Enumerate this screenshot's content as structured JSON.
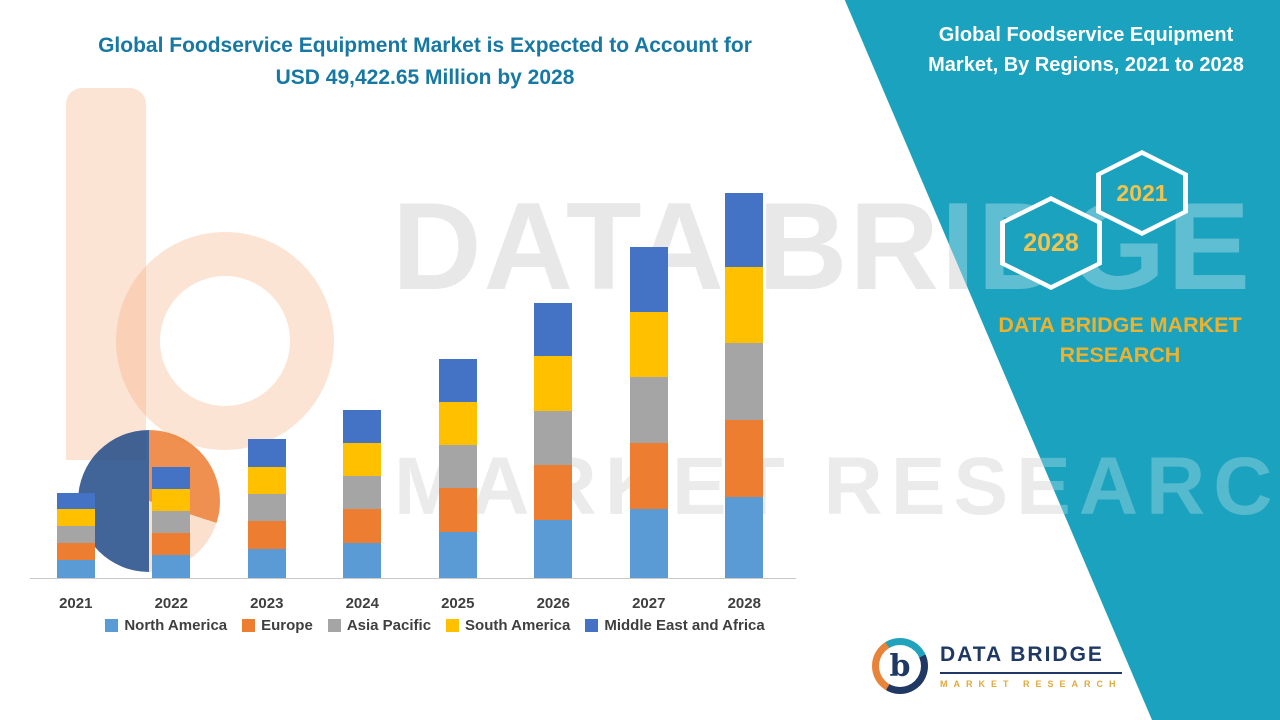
{
  "title": {
    "line1": "Global Foodservice Equipment Market is Expected to Account for",
    "line2": "USD 49,422.65 Million by 2028",
    "color": "#1779A3"
  },
  "banner": {
    "color": "#1BA2BE",
    "heading_line1": "Global Foodservice Equipment",
    "heading_line2": "Market, By Regions, 2021 to 2028",
    "hex_year_left": "2028",
    "hex_year_right": "2021",
    "brand_line1": "DATA BRIDGE MARKET",
    "brand_line2": "RESEARCH",
    "brand_color": "#ECB22E"
  },
  "watermark": {
    "line1": "DATA BRIDGE",
    "line2": "MARKET RESEARCH"
  },
  "footer_logo": {
    "monogram": "b",
    "name": "DATA BRIDGE",
    "sub": "MARKET RESEARCH"
  },
  "chart_data": {
    "type": "bar",
    "stacked": true,
    "title": "Global Foodservice Equipment Market is Expected to Account for USD 49,422.65 Million by 2028",
    "unit": "USD Million",
    "categories": [
      "2021",
      "2022",
      "2023",
      "2024",
      "2025",
      "2026",
      "2027",
      "2028"
    ],
    "series": [
      {
        "name": "North America",
        "color": "#5B9BD5",
        "values": [
          2300,
          2950,
          3700,
          4500,
          5900,
          7400,
          8900,
          10400
        ]
      },
      {
        "name": "Europe",
        "color": "#ED7D31",
        "values": [
          2200,
          2850,
          3550,
          4300,
          5600,
          7050,
          8450,
          9900
        ]
      },
      {
        "name": "Asia Pacific",
        "color": "#A5A5A5",
        "values": [
          2150,
          2800,
          3500,
          4250,
          5550,
          7000,
          8400,
          9850
        ]
      },
      {
        "name": "South America",
        "color": "#FFC000",
        "values": [
          2150,
          2800,
          3500,
          4250,
          5550,
          7000,
          8400,
          9800
        ]
      },
      {
        "name": "Middle East and Africa",
        "color": "#4472C4",
        "values": [
          2100,
          2800,
          3550,
          4200,
          5500,
          6850,
          8250,
          9472.65
        ]
      }
    ],
    "totals": [
      10900,
      14200,
      17800,
      21500,
      28100,
      35300,
      42400,
      49422.65
    ],
    "ylim": [
      0,
      50000
    ],
    "xlabel": "",
    "ylabel": "",
    "grid": false,
    "y_axis_visible": false,
    "legend_position": "bottom"
  }
}
